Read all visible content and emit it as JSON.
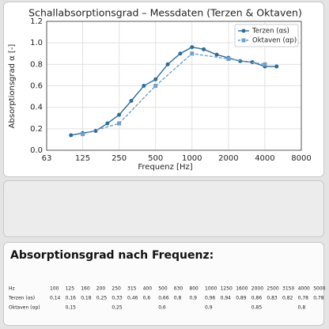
{
  "chart_data": {
    "type": "line",
    "title": "Schallabsorptionsgrad – Messdaten (Terzen & Oktaven)",
    "x_label": "Frequenz [Hz]",
    "y_label": "Absorptionsgrad α [-]",
    "xlim": [
      63,
      8000
    ],
    "xticks": [
      63,
      125,
      250,
      500,
      1000,
      2000,
      4000,
      8000
    ],
    "log_x": true,
    "ylim": [
      0,
      1.2
    ],
    "yticks": [
      {
        "value": 0,
        "label": "0.0"
      },
      0.2,
      0.4,
      0.6,
      0.8,
      {
        "value": 1,
        "label": "1.0"
      },
      1.2
    ],
    "grid": true,
    "legend": "upper right",
    "series": [
      {
        "name": "Terzen (αs)",
        "color": "#2c6b9c",
        "dashed": false,
        "marker": "circle",
        "x": [
          100,
          125,
          160,
          200,
          250,
          315,
          400,
          500,
          630,
          800,
          1000,
          1250,
          1600,
          2000,
          2500,
          3150,
          4000,
          5000
        ],
        "values": [
          0.14,
          0.16,
          0.18,
          0.25,
          0.33,
          0.46,
          0.6,
          0.66,
          0.8,
          0.9,
          0.96,
          0.94,
          0.89,
          0.86,
          0.83,
          0.82,
          0.78,
          0.78
        ]
      },
      {
        "name": "Oktaven (αp)",
        "color": "#6fa0cc",
        "dashed": true,
        "marker": "square",
        "x": [
          125,
          250,
          500,
          1000,
          2000,
          4000
        ],
        "values": [
          0.15,
          0.25,
          0.6,
          0.9,
          0.85,
          0.8
        ]
      }
    ]
  },
  "table": {
    "title": "Absorptionsgrad nach Frequenz:",
    "header": [
      "Hz",
      "100",
      "125",
      "160",
      "200",
      "250",
      "315",
      "400",
      "500",
      "630",
      "800",
      "1000",
      "1250",
      "1600",
      "2000",
      "2500",
      "3150",
      "4000",
      "5000"
    ],
    "rows": [
      [
        "Terzen (αs)",
        "0,14",
        "0,16",
        "0,18",
        "0,25",
        "0,33",
        "0,46",
        "0,6",
        "0,66",
        "0,8",
        "0,9",
        "0,96",
        "0,94",
        "0,89",
        "0,86",
        "0,83",
        "0,82",
        "0,78",
        "0,78"
      ],
      [
        "Oktaven (αp)",
        null,
        "0,15",
        null,
        null,
        "0,25",
        null,
        null,
        "0,6",
        null,
        null,
        "0,9",
        null,
        null,
        "0,85",
        null,
        null,
        "0,8",
        null
      ]
    ]
  }
}
